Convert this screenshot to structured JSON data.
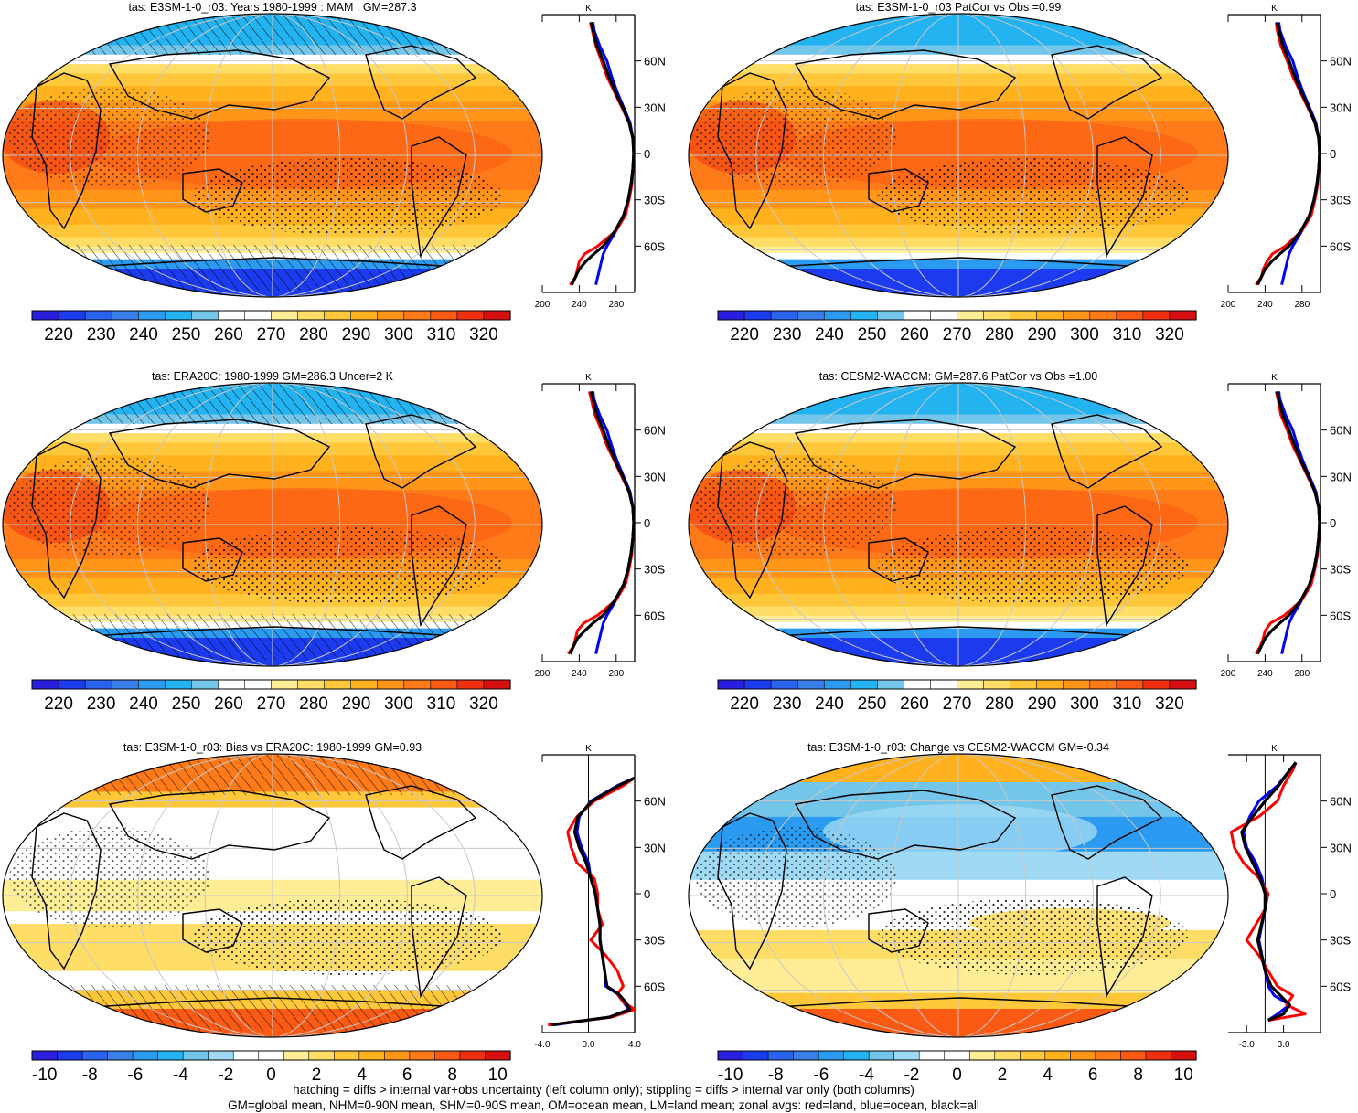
{
  "palettes": {
    "abs": [
      "#2a1fe0",
      "#1c3bef",
      "#2a63ec",
      "#3a7fe8",
      "#2a9bf0",
      "#22b3f0",
      "#73c6ea",
      "#ffffff",
      "#ffffff",
      "#ffee96",
      "#ffde68",
      "#ffc73a",
      "#ffb21e",
      "#ff961a",
      "#ff7a18",
      "#fb5a14",
      "#ee3010",
      "#d61010"
    ],
    "diff": [
      "#2a1fe0",
      "#1c3bef",
      "#2a63ec",
      "#3a7fe8",
      "#2a9bf0",
      "#22b3f0",
      "#73c6ea",
      "#9fd9f4",
      "#ffffff",
      "#ffffff",
      "#ffee96",
      "#ffde68",
      "#ffc73a",
      "#ffb21e",
      "#ff961a",
      "#ff7a18",
      "#fb5a14",
      "#ee3010",
      "#d61010"
    ]
  },
  "line_colors": {
    "land": "#ff0000",
    "ocean": "#0000ff",
    "all": "#000000"
  },
  "chart_data": [
    {
      "panel": 1,
      "type": "heatmap",
      "title": "tas: E3SM-1-0_r03: Years 1980-1999 : MAM : GM=287.3",
      "field": "abs",
      "hatching": true,
      "stippling": true,
      "colorbar": {
        "labels": [
          "220",
          "230",
          "240",
          "250",
          "260",
          "270",
          "280",
          "290",
          "300",
          "310",
          "320"
        ]
      },
      "zonal": {
        "type": "line",
        "units": "K",
        "xticks": [
          "200",
          "240",
          "280"
        ],
        "xlim": [
          200,
          300
        ],
        "yticks": [
          "60N",
          "30N",
          "0",
          "30S",
          "60S"
        ],
        "ylim": [
          -90,
          90
        ],
        "lat": [
          -85,
          -80,
          -75,
          -70,
          -65,
          -60,
          -50,
          -40,
          -30,
          -20,
          -10,
          0,
          10,
          20,
          30,
          40,
          50,
          60,
          70,
          80,
          85
        ],
        "land": [
          230,
          236,
          238,
          240,
          246,
          260,
          280,
          290,
          294,
          297,
          298,
          299,
          298,
          294,
          286,
          278,
          270,
          264,
          258,
          254,
          252
        ],
        "ocean": [
          258,
          260,
          262,
          264,
          266,
          270,
          280,
          288,
          293,
          296,
          298,
          299,
          298,
          295,
          288,
          281,
          275,
          270,
          262,
          256,
          255
        ],
        "all": [
          232,
          236,
          240,
          247,
          256,
          266,
          279,
          288,
          293,
          296,
          298,
          299,
          298,
          294,
          287,
          279,
          272,
          266,
          259,
          255,
          253
        ]
      }
    },
    {
      "panel": 2,
      "type": "heatmap",
      "title": "tas: E3SM-1-0_r03 PatCor vs Obs =0.99",
      "field": "abs",
      "hatching": false,
      "stippling": true,
      "colorbar": {
        "labels": [
          "220",
          "230",
          "240",
          "250",
          "260",
          "270",
          "280",
          "290",
          "300",
          "310",
          "320"
        ]
      },
      "zonal": {
        "type": "line",
        "units": "K",
        "xticks": [
          "200",
          "240",
          "280"
        ],
        "xlim": [
          200,
          300
        ],
        "yticks": [
          "60N",
          "30N",
          "0",
          "30S",
          "60S"
        ],
        "ylim": [
          -90,
          90
        ],
        "lat": [
          -85,
          -80,
          -75,
          -70,
          -65,
          -60,
          -50,
          -40,
          -30,
          -20,
          -10,
          0,
          10,
          20,
          30,
          40,
          50,
          60,
          70,
          80,
          85
        ],
        "land": [
          230,
          236,
          238,
          242,
          248,
          262,
          280,
          290,
          294,
          297,
          298,
          299,
          298,
          294,
          286,
          278,
          270,
          264,
          257,
          253,
          252
        ],
        "ocean": [
          258,
          260,
          262,
          264,
          266,
          270,
          280,
          288,
          293,
          296,
          298,
          299,
          298,
          295,
          288,
          281,
          275,
          270,
          262,
          256,
          255
        ],
        "all": [
          232,
          236,
          240,
          247,
          256,
          266,
          279,
          288,
          293,
          296,
          298,
          299,
          298,
          294,
          287,
          279,
          272,
          266,
          259,
          255,
          253
        ]
      }
    },
    {
      "panel": 3,
      "type": "heatmap",
      "title": "tas: ERA20C: 1980-1999 GM=286.3 Uncer=2 K",
      "field": "abs",
      "hatching": true,
      "stippling": true,
      "colorbar": {
        "labels": [
          "220",
          "230",
          "240",
          "250",
          "260",
          "270",
          "280",
          "290",
          "300",
          "310",
          "320"
        ]
      },
      "zonal": {
        "type": "line",
        "units": "K",
        "xticks": [
          "200",
          "240",
          "280"
        ],
        "xlim": [
          200,
          300
        ],
        "yticks": [
          "60N",
          "30N",
          "0",
          "30S",
          "60S"
        ],
        "ylim": [
          -90,
          90
        ],
        "lat": [
          -85,
          -80,
          -75,
          -70,
          -65,
          -60,
          -50,
          -40,
          -30,
          -20,
          -10,
          0,
          10,
          20,
          30,
          40,
          50,
          60,
          70,
          80,
          85
        ],
        "land": [
          228,
          234,
          236,
          238,
          245,
          260,
          280,
          290,
          294,
          297,
          298,
          299,
          298,
          294,
          286,
          278,
          270,
          264,
          257,
          253,
          251
        ],
        "ocean": [
          258,
          260,
          262,
          264,
          266,
          270,
          280,
          288,
          293,
          296,
          298,
          299,
          298,
          295,
          288,
          281,
          275,
          270,
          262,
          256,
          255
        ],
        "all": [
          230,
          234,
          238,
          246,
          255,
          266,
          279,
          288,
          293,
          296,
          298,
          299,
          298,
          294,
          287,
          279,
          272,
          266,
          259,
          255,
          253
        ]
      }
    },
    {
      "panel": 4,
      "type": "heatmap",
      "title": "tas: CESM2-WACCM: GM=287.6 PatCor vs Obs =1.00",
      "field": "abs",
      "hatching": false,
      "stippling": true,
      "colorbar": {
        "labels": [
          "220",
          "230",
          "240",
          "250",
          "260",
          "270",
          "280",
          "290",
          "300",
          "310",
          "320"
        ]
      },
      "zonal": {
        "type": "line",
        "units": "K",
        "xticks": [
          "200",
          "240",
          "280"
        ],
        "xlim": [
          200,
          300
        ],
        "yticks": [
          "60N",
          "30N",
          "0",
          "30S",
          "60S"
        ],
        "ylim": [
          -90,
          90
        ],
        "lat": [
          -85,
          -80,
          -75,
          -70,
          -65,
          -60,
          -50,
          -40,
          -30,
          -20,
          -10,
          0,
          10,
          20,
          30,
          40,
          50,
          60,
          70,
          80,
          85
        ],
        "land": [
          230,
          235,
          238,
          240,
          246,
          261,
          280,
          290,
          294,
          297,
          298,
          299,
          298,
          294,
          286,
          278,
          270,
          264,
          257,
          254,
          252
        ],
        "ocean": [
          258,
          260,
          262,
          264,
          266,
          270,
          280,
          288,
          293,
          296,
          298,
          299,
          298,
          295,
          288,
          281,
          275,
          270,
          262,
          256,
          255
        ],
        "all": [
          232,
          236,
          240,
          247,
          256,
          266,
          279,
          288,
          293,
          296,
          298,
          299,
          298,
          294,
          287,
          279,
          272,
          266,
          259,
          255,
          253
        ]
      }
    },
    {
      "panel": 5,
      "type": "heatmap",
      "title": "tas: E3SM-1-0_r03: Bias vs ERA20C: 1980-1999 GM=0.93",
      "field": "diff",
      "hatching": true,
      "stippling": true,
      "colorbar": {
        "labels": [
          "-10",
          "-8",
          "-6",
          "-4",
          "-2",
          "0",
          "2",
          "4",
          "6",
          "8",
          "10"
        ]
      },
      "zonal": {
        "type": "line",
        "units": "K",
        "xticks": [
          "-4.0",
          "0.0",
          "4.0"
        ],
        "xlim": [
          -4,
          4
        ],
        "yticks": [
          "60N",
          "30N",
          "0",
          "30S",
          "60S"
        ],
        "ylim": [
          -90,
          90
        ],
        "lat": [
          -85,
          -80,
          -75,
          -70,
          -65,
          -60,
          -50,
          -40,
          -30,
          -20,
          -10,
          0,
          10,
          20,
          30,
          40,
          50,
          60,
          70,
          75
        ],
        "land": [
          -3.5,
          2.0,
          4.0,
          3.0,
          2.5,
          3.0,
          2.5,
          1.5,
          0.2,
          1.2,
          0.8,
          0.8,
          0.5,
          -1.0,
          -1.5,
          -1.8,
          -1.0,
          0.5,
          3.0,
          4.0
        ],
        "ocean": [
          -3.0,
          1.8,
          3.5,
          3.0,
          2.5,
          1.5,
          1.4,
          1.2,
          1.0,
          1.0,
          0.8,
          0.6,
          0.2,
          0.0,
          -0.6,
          -1.0,
          -0.8,
          0.2,
          2.5,
          4.0
        ],
        "all": [
          -3.2,
          1.8,
          3.6,
          3.2,
          2.6,
          1.6,
          1.4,
          1.2,
          1.0,
          1.0,
          0.8,
          0.6,
          0.2,
          -0.2,
          -0.8,
          -1.2,
          -0.9,
          0.3,
          2.6,
          4.0
        ]
      }
    },
    {
      "panel": 6,
      "type": "heatmap",
      "title": "tas: E3SM-1-0_r03: Change vs CESM2-WACCM GM=-0.34",
      "field": "diff",
      "hatching": false,
      "stippling": true,
      "colorbar": {
        "labels": [
          "-10",
          "-8",
          "-6",
          "-4",
          "-2",
          "0",
          "2",
          "4",
          "6",
          "8",
          "10"
        ]
      },
      "zonal": {
        "type": "line",
        "units": "K",
        "xticks": [
          "-3.0",
          "3.0"
        ],
        "xlim": [
          -6,
          9
        ],
        "yticks": [
          "60N",
          "30N",
          "0",
          "30S",
          "60S"
        ],
        "ylim": [
          -90,
          90
        ],
        "lat": [
          -82,
          -78,
          -72,
          -66,
          -60,
          -50,
          -40,
          -30,
          -20,
          -10,
          0,
          10,
          20,
          30,
          40,
          50,
          60,
          70,
          80,
          85
        ],
        "land": [
          0.5,
          6.5,
          3.5,
          4.5,
          2.0,
          0.5,
          -1.0,
          -3.0,
          -1.5,
          0.0,
          0.5,
          -1.0,
          -3.5,
          -5.0,
          -5.5,
          -1.0,
          2.0,
          3.0,
          4.5,
          5.0
        ],
        "ocean": [
          0.5,
          2.0,
          4.0,
          1.5,
          0.5,
          0.0,
          -0.5,
          -1.0,
          -0.5,
          0.0,
          0.0,
          -0.5,
          -1.5,
          -3.0,
          -3.5,
          -2.5,
          -1.0,
          2.0,
          4.0,
          5.0
        ],
        "all": [
          0.5,
          3.0,
          4.0,
          2.5,
          1.0,
          0.0,
          -0.6,
          -1.2,
          -0.6,
          0.0,
          0.0,
          -0.8,
          -2.0,
          -3.2,
          -3.8,
          -2.0,
          0.0,
          2.2,
          4.0,
          5.0
        ]
      }
    }
  ],
  "footer": {
    "line1": "hatching = diffs > internal var+obs uncertainty (left column only); stippling = diffs > internal var only (both columns)",
    "line2": "GM=global mean, NHM=0-90N mean, SHM=0-90S mean, OM=ocean mean, LM=land mean; zonal avgs: red=land, blue=ocean, black=all"
  }
}
